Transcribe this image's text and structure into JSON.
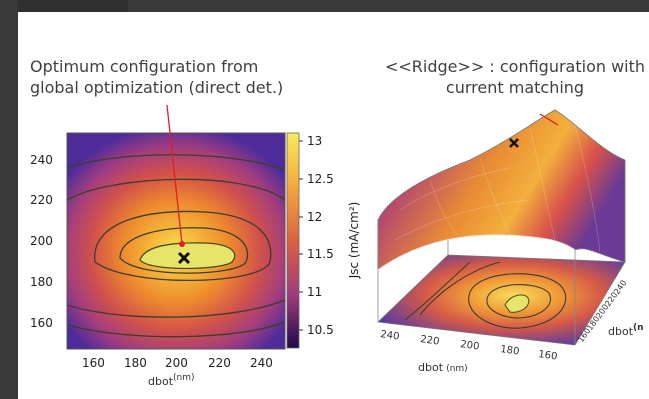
{
  "captions": {
    "left": [
      "Optimum configuration from",
      "global optimization (direct det.)"
    ],
    "right": [
      "<<Ridge>> : configuration with",
      "current matching"
    ]
  },
  "chart_data": [
    {
      "type": "heatmap",
      "title": "",
      "xlabel_main": "dbot",
      "xlabel_unit": "(nm)",
      "ylabel": "",
      "x_ticks": [
        "160",
        "180",
        "200",
        "220",
        "240"
      ],
      "y_ticks": [
        "240",
        "220",
        "200",
        "180",
        "160"
      ],
      "xlim": [
        145,
        255
      ],
      "ylim": [
        145,
        255
      ],
      "optimum": {
        "x": 202,
        "y": 192
      },
      "colorbar": {
        "label": "Jsc (mA/cm²)",
        "ticks": [
          "13",
          "12.5",
          "12",
          "11.5",
          "11",
          "10.5"
        ],
        "range": [
          10.3,
          13.1
        ]
      }
    },
    {
      "type": "surface",
      "title": "",
      "x_axis_label_main": "dbot",
      "x_axis_label_unit": "(nm)",
      "y_axis_label_main": "dbot",
      "y_axis_label_unit": "(n",
      "x_ticks": [
        "240",
        "220",
        "200",
        "180",
        "160"
      ],
      "y_ticks": [
        "160",
        "180",
        "200",
        "220",
        "240"
      ]
    }
  ],
  "colors": {
    "background": "#ffffff",
    "frame": "#3a3a3a",
    "optimum_line": "#e02020",
    "contour": "#3d3d2a"
  }
}
